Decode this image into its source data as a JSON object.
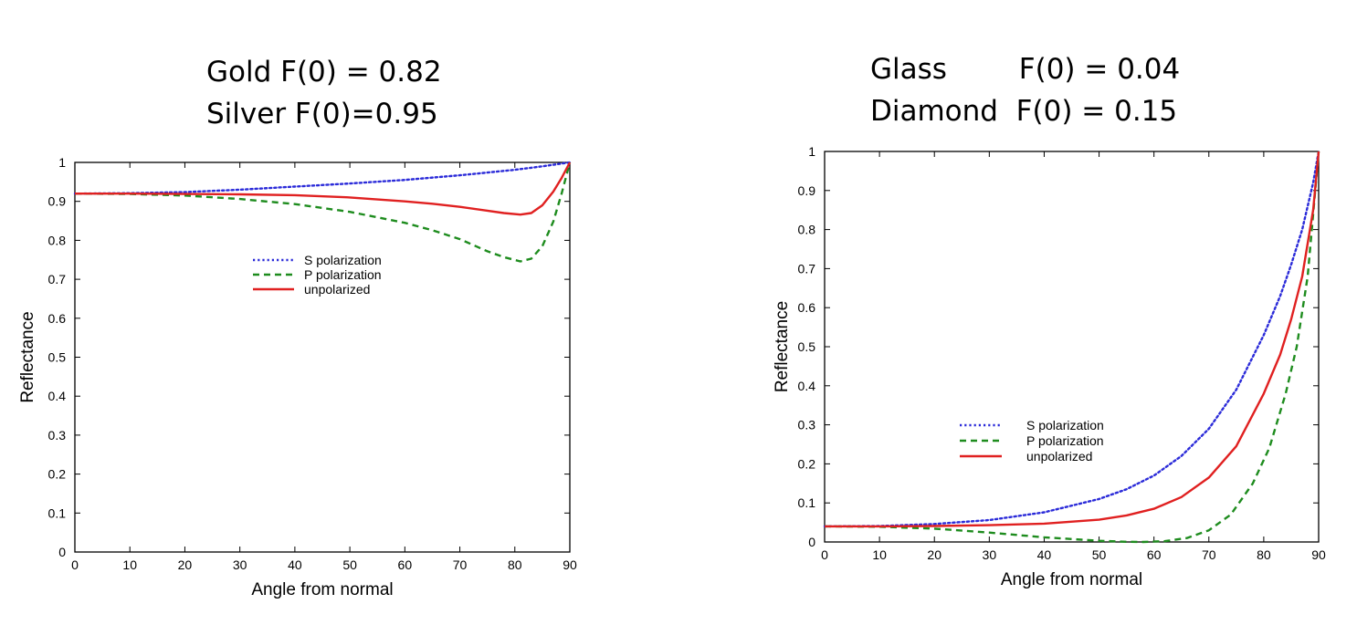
{
  "captions": {
    "left": [
      "Gold F(0) = 0.82",
      "Silver F(0)=0.95"
    ],
    "right": [
      "Glass        F(0) = 0.04",
      "Diamond  F(0) = 0.15"
    ]
  },
  "chart_data": [
    {
      "type": "line",
      "xlabel": "Angle from normal",
      "ylabel": "Reflectance",
      "xlim": [
        0,
        90
      ],
      "ylim": [
        0,
        1
      ],
      "xticks": [
        0,
        10,
        20,
        30,
        40,
        50,
        60,
        70,
        80,
        90
      ],
      "yticks": [
        0,
        0.1,
        0.2,
        0.3,
        0.4,
        0.5,
        0.6,
        0.7,
        0.8,
        0.9,
        1
      ],
      "legend_position": "upper-center",
      "series": [
        {
          "name": "S polarization",
          "color": "#2b2bd9",
          "style": "dotted",
          "x": [
            0,
            10,
            20,
            30,
            40,
            50,
            60,
            70,
            80,
            85,
            88,
            90
          ],
          "y": [
            0.92,
            0.921,
            0.924,
            0.93,
            0.938,
            0.946,
            0.955,
            0.967,
            0.981,
            0.99,
            0.996,
            1.0
          ]
        },
        {
          "name": "P polarization",
          "color": "#1e8c1e",
          "style": "dashed",
          "x": [
            0,
            10,
            20,
            30,
            40,
            50,
            60,
            65,
            70,
            75,
            78,
            81,
            83,
            85,
            87,
            88.5,
            90
          ],
          "y": [
            0.92,
            0.919,
            0.915,
            0.906,
            0.893,
            0.873,
            0.845,
            0.826,
            0.803,
            0.772,
            0.757,
            0.746,
            0.753,
            0.785,
            0.848,
            0.92,
            1.0
          ]
        },
        {
          "name": "unpolarized",
          "color": "#e02020",
          "style": "solid",
          "x": [
            0,
            10,
            20,
            30,
            40,
            50,
            60,
            65,
            70,
            75,
            78,
            81,
            83,
            85,
            87,
            88.5,
            90
          ],
          "y": [
            0.92,
            0.92,
            0.919,
            0.918,
            0.916,
            0.91,
            0.9,
            0.894,
            0.886,
            0.876,
            0.87,
            0.866,
            0.87,
            0.89,
            0.925,
            0.96,
            1.0
          ]
        }
      ]
    },
    {
      "type": "line",
      "xlabel": "Angle from normal",
      "ylabel": "Reflectance",
      "xlim": [
        0,
        90
      ],
      "ylim": [
        0,
        1
      ],
      "xticks": [
        0,
        10,
        20,
        30,
        40,
        50,
        60,
        70,
        80,
        90
      ],
      "yticks": [
        0,
        0.1,
        0.2,
        0.3,
        0.4,
        0.5,
        0.6,
        0.7,
        0.8,
        0.9,
        1
      ],
      "legend_position": "center",
      "series": [
        {
          "name": "S polarization",
          "color": "#2b2bd9",
          "style": "dotted",
          "x": [
            0,
            10,
            20,
            30,
            40,
            50,
            55,
            60,
            65,
            70,
            75,
            80,
            83,
            85,
            87,
            89,
            90
          ],
          "y": [
            0.04,
            0.041,
            0.046,
            0.056,
            0.076,
            0.11,
            0.135,
            0.17,
            0.22,
            0.29,
            0.39,
            0.53,
            0.63,
            0.71,
            0.8,
            0.92,
            1.0
          ]
        },
        {
          "name": "P polarization",
          "color": "#1e8c1e",
          "style": "dashed",
          "x": [
            0,
            10,
            20,
            30,
            40,
            50,
            55,
            58,
            62,
            66,
            70,
            74,
            78,
            81,
            84,
            86,
            88,
            90
          ],
          "y": [
            0.04,
            0.039,
            0.034,
            0.024,
            0.012,
            0.003,
            0.0005,
            0.0,
            0.002,
            0.01,
            0.03,
            0.07,
            0.15,
            0.24,
            0.38,
            0.5,
            0.68,
            1.0
          ]
        },
        {
          "name": "unpolarized",
          "color": "#e02020",
          "style": "solid",
          "x": [
            0,
            10,
            20,
            30,
            40,
            50,
            55,
            60,
            65,
            70,
            75,
            80,
            83,
            85,
            87,
            89,
            90
          ],
          "y": [
            0.04,
            0.04,
            0.041,
            0.043,
            0.047,
            0.057,
            0.068,
            0.085,
            0.115,
            0.165,
            0.245,
            0.38,
            0.48,
            0.57,
            0.68,
            0.85,
            1.0
          ]
        }
      ]
    }
  ]
}
